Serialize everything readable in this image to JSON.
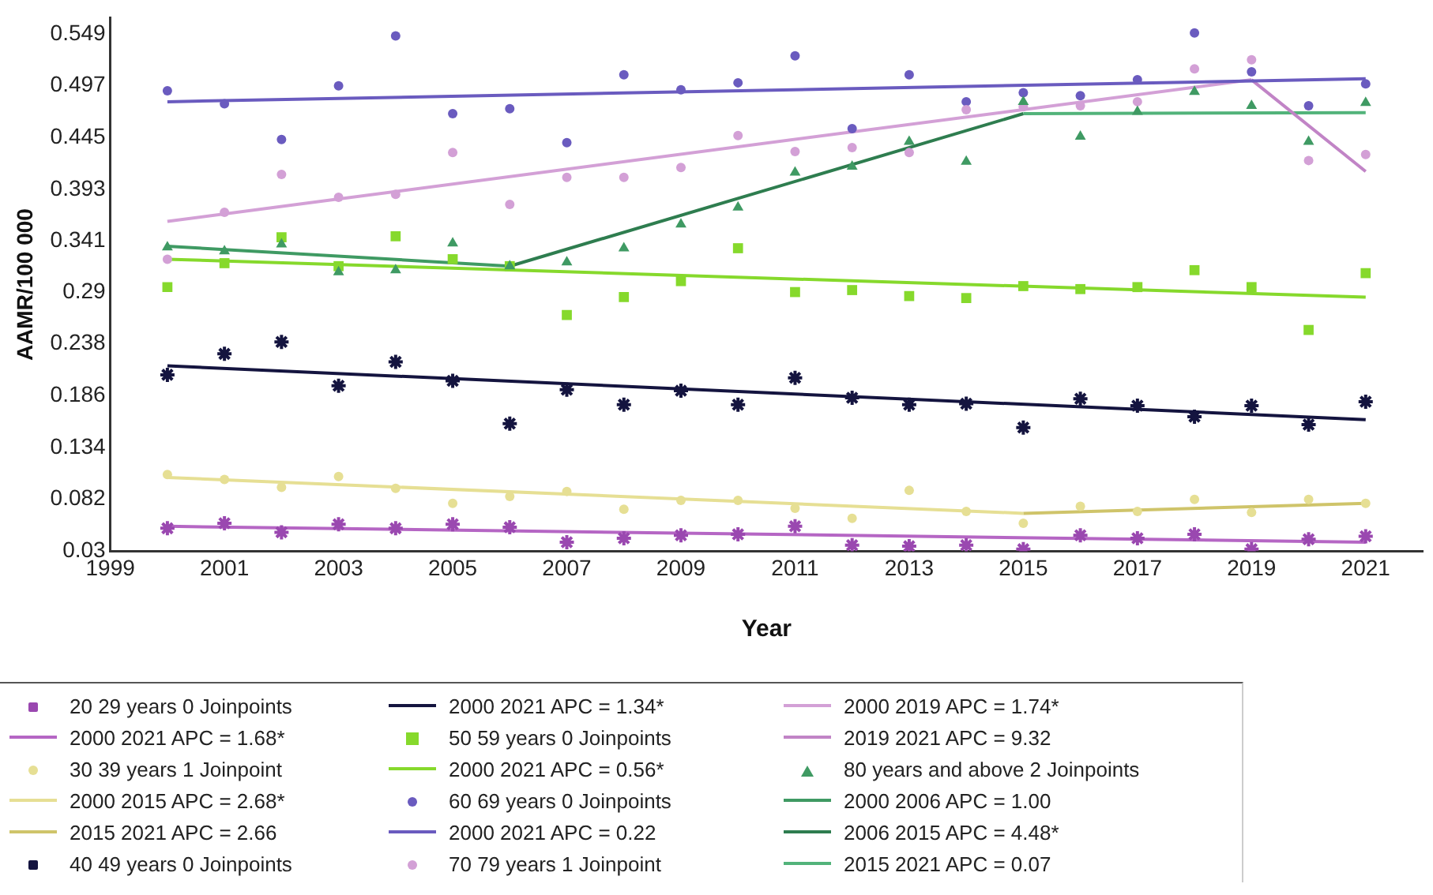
{
  "chart_data": {
    "type": "scatter",
    "xlabel": "Year",
    "ylabel": "AAMR/100 000",
    "xlim": [
      1999,
      2022
    ],
    "xticks": [
      1999,
      2001,
      2003,
      2005,
      2007,
      2009,
      2011,
      2013,
      2015,
      2017,
      2019,
      2021
    ],
    "ylim": [
      0.03,
      0.565
    ],
    "yticks": [
      0.03,
      0.082,
      0.134,
      0.186,
      0.238,
      0.29,
      0.341,
      0.393,
      0.445,
      0.497,
      0.549
    ],
    "grid": false,
    "legend": "bottom",
    "x": [
      2000,
      2001,
      2002,
      2003,
      2004,
      2005,
      2006,
      2007,
      2008,
      2009,
      2010,
      2011,
      2012,
      2013,
      2014,
      2015,
      2016,
      2017,
      2018,
      2019,
      2020,
      2021
    ],
    "series": [
      {
        "name": "20 29 years 0 Joinpoints",
        "type": "scatter",
        "marker": "cross",
        "color": "#9a48b0",
        "values": [
          0.053,
          0.058,
          0.049,
          0.057,
          0.053,
          0.057,
          0.054,
          0.039,
          0.043,
          0.046,
          0.047,
          0.055,
          0.036,
          0.035,
          0.036,
          0.032,
          0.046,
          0.043,
          0.047,
          0.032,
          0.042,
          0.045
        ]
      },
      {
        "name": "2000 2021 APC = 1.68*",
        "type": "line",
        "color": "#b566c4",
        "x": [
          2000,
          2021
        ],
        "values": [
          0.055,
          0.039
        ]
      },
      {
        "name": "30 39 years 1 Joinpoint",
        "type": "scatter",
        "marker": "circle",
        "color": "#e6df94",
        "values": [
          0.107,
          0.102,
          0.094,
          0.105,
          0.093,
          0.078,
          0.085,
          0.09,
          0.072,
          0.081,
          0.081,
          0.073,
          0.063,
          0.091,
          0.07,
          0.058,
          0.075,
          0.07,
          0.082,
          0.069,
          0.082,
          0.078
        ]
      },
      {
        "name": "2000 2015 APC = 2.68*",
        "type": "line",
        "color": "#e6df94",
        "x": [
          2000,
          2015
        ],
        "values": [
          0.104,
          0.068
        ]
      },
      {
        "name": "2015 2021 APC = 2.66",
        "type": "line",
        "color": "#cfc46a",
        "x": [
          2015,
          2021
        ],
        "values": [
          0.068,
          0.078
        ]
      },
      {
        "name": "40 49 years 0 Joinpoints",
        "type": "scatter",
        "marker": "cross",
        "color": "#14143f",
        "values": [
          0.207,
          0.228,
          0.24,
          0.196,
          0.22,
          0.201,
          0.158,
          0.192,
          0.177,
          0.191,
          0.177,
          0.204,
          0.184,
          0.177,
          0.178,
          0.154,
          0.183,
          0.176,
          0.165,
          0.176,
          0.157,
          0.18
        ]
      },
      {
        "name": "2000 2021 APC = 1.34*",
        "type": "line",
        "color": "#14143f",
        "x": [
          2000,
          2021
        ],
        "values": [
          0.216,
          0.162
        ]
      },
      {
        "name": "50 59 years 0 Joinpoints",
        "type": "scatter",
        "marker": "square",
        "color": "#86d92c",
        "values": [
          0.295,
          0.319,
          0.345,
          0.316,
          0.346,
          0.323,
          0.316,
          0.267,
          0.285,
          0.301,
          0.334,
          0.29,
          0.292,
          0.286,
          0.284,
          0.296,
          0.293,
          0.295,
          0.312,
          0.295,
          0.252,
          0.309
        ]
      },
      {
        "name": "2000 2021 APC = 0.56*",
        "type": "line",
        "color": "#86d92c",
        "x": [
          2000,
          2021
        ],
        "values": [
          0.323,
          0.285
        ]
      },
      {
        "name": "60 69 years 0 Joinpoints",
        "type": "scatter",
        "marker": "circle",
        "color": "#6a5bbf",
        "values": [
          0.492,
          0.479,
          0.443,
          0.497,
          0.547,
          0.469,
          0.474,
          0.44,
          0.508,
          0.493,
          0.5,
          0.527,
          0.454,
          0.508,
          0.481,
          0.49,
          0.487,
          0.503,
          0.55,
          0.511,
          0.477,
          0.499
        ]
      },
      {
        "name": "2000 2021 APC = 0.22",
        "type": "line",
        "color": "#6a5bbf",
        "x": [
          2000,
          2021
        ],
        "values": [
          0.481,
          0.504
        ]
      },
      {
        "name": "70 79 years 1 Joinpoint",
        "type": "scatter",
        "marker": "circle",
        "color": "#d3a0d6",
        "values": [
          0.323,
          0.37,
          0.408,
          0.385,
          0.388,
          0.43,
          0.378,
          0.405,
          0.405,
          0.415,
          0.447,
          0.431,
          0.435,
          0.43,
          0.473,
          0.476,
          0.477,
          0.481,
          0.514,
          0.523,
          0.422,
          0.428
        ]
      },
      {
        "name": "2000 2019 APC = 1.74*",
        "type": "line",
        "color": "#d3a0d6",
        "x": [
          2000,
          2019
        ],
        "values": [
          0.361,
          0.503
        ]
      },
      {
        "name": "2019 2021 APC = 9.32",
        "type": "line",
        "color": "#c184c6",
        "x": [
          2019,
          2021
        ],
        "values": [
          0.503,
          0.411
        ]
      },
      {
        "name": "80 years and above 2 Joinpoints",
        "type": "scatter",
        "marker": "triangle",
        "color": "#3f9a63",
        "values": [
          0.335,
          0.331,
          0.338,
          0.31,
          0.312,
          0.339,
          0.316,
          0.32,
          0.334,
          0.358,
          0.375,
          0.41,
          0.416,
          0.441,
          0.421,
          0.481,
          0.446,
          0.471,
          0.491,
          0.477,
          0.441,
          0.48
        ]
      },
      {
        "name": "2000 2006 APC = 1.00",
        "type": "line",
        "color": "#3f9a63",
        "x": [
          2000,
          2006
        ],
        "values": [
          0.336,
          0.316
        ]
      },
      {
        "name": "2006 2015 APC = 4.48*",
        "type": "line",
        "color": "#2e7d4f",
        "x": [
          2006,
          2015
        ],
        "values": [
          0.316,
          0.469
        ]
      },
      {
        "name": "2015 2021 APC = 0.07",
        "type": "line",
        "color": "#52b37a",
        "x": [
          2015,
          2021
        ],
        "values": [
          0.469,
          0.47
        ]
      }
    ]
  }
}
